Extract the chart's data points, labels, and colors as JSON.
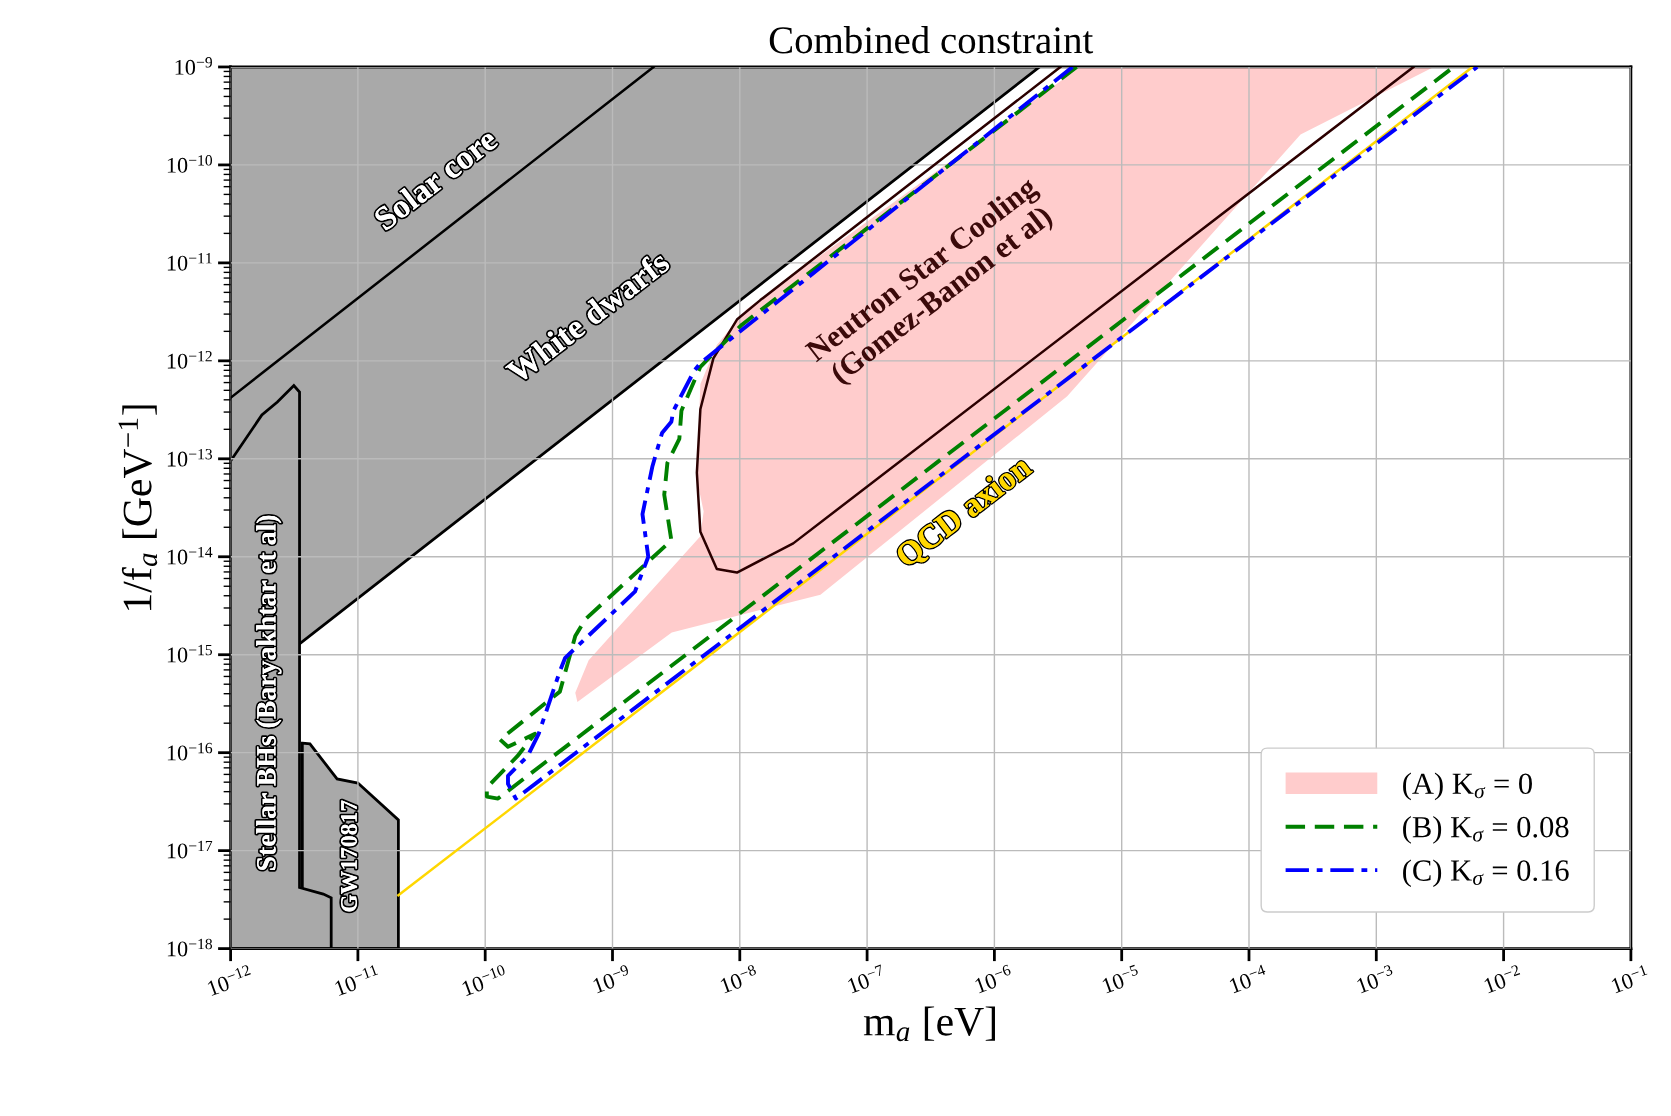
{
  "chart_data": {
    "type": "line",
    "title": "Combined constraint",
    "xlabel": "m$_{a}$ [eV]",
    "ylabel": "1/f$_{a}$ [GeV$^{−1}$]",
    "log": "xy",
    "grid": true,
    "legend": "bottom right",
    "xlim": [
      1e-12,
      0.1
    ],
    "ylim": [
      1e-18,
      1e-09
    ],
    "xticks": [
      {
        "value": 1e-12,
        "label": "10$^{−12}$"
      },
      {
        "value": 1e-11,
        "label": "10$^{−11}$"
      },
      {
        "value": 1e-10,
        "label": "10$^{−10}$"
      },
      {
        "value": 1e-09,
        "label": "10$^{−9}$"
      },
      {
        "value": 1e-08,
        "label": "10$^{−8}$"
      },
      {
        "value": 1e-07,
        "label": "10$^{−7}$"
      },
      {
        "value": 1e-06,
        "label": "10$^{−6}$"
      },
      {
        "value": 1e-05,
        "label": "10$^{−5}$"
      },
      {
        "value": 0.0001,
        "label": "10$^{−4}$"
      },
      {
        "value": 0.001,
        "label": "10$^{−3}$"
      },
      {
        "value": 0.01,
        "label": "10$^{−2}$"
      },
      {
        "value": 0.1,
        "label": "10$^{−1}$"
      }
    ],
    "yticks": [
      {
        "value": 1e-18,
        "label": "10$^{−18}$"
      },
      {
        "value": 1e-17,
        "label": "10$^{−17}$"
      },
      {
        "value": 1e-16,
        "label": "10$^{−16}$"
      },
      {
        "value": 1e-15,
        "label": "10$^{−15}$"
      },
      {
        "value": 1e-14,
        "label": "10$^{−14}$"
      },
      {
        "value": 1e-13,
        "label": "10$^{−13}$"
      },
      {
        "value": 1e-12,
        "label": "10$^{−12}$"
      },
      {
        "value": 1e-11,
        "label": "10$^{−11}$"
      },
      {
        "value": 1e-10,
        "label": "10$^{−10}$"
      },
      {
        "value": 1e-09,
        "label": "10$^{−9}$"
      }
    ],
    "series": [
      {
        "type": "area",
        "color": "#a9a9a9",
        "line_style": "solid",
        "x": [
          1e-12,
          2.26e-06,
          3.5e-12,
          1e-12
        ],
        "values": [
          1e-09,
          1e-09,
          1.3e-15,
          1.3e-15
        ]
      },
      {
        "color": "#000000",
        "line_style": "solid",
        "x": [
          1e-12,
          2.1e-09
        ],
        "values": [
          4.2e-13,
          1e-09
        ]
      },
      {
        "type": "area",
        "color": "#a9a9a9",
        "line_style": "solid",
        "x": [
          3.66e-12,
          4.2e-12,
          6.86e-12,
          1e-11,
          2.08e-11,
          2.08e-11,
          3.66e-12
        ],
        "values": [
          1.25e-16,
          1.23e-16,
          5.4e-17,
          4.9e-17,
          2.06e-17,
          1e-18,
          1e-18
        ]
      },
      {
        "type": "area",
        "color": "#a9a9a9",
        "line_style": "solid",
        "x": [
          1e-12,
          1.76e-12,
          2.33e-12,
          3.14e-12,
          3.48e-12,
          3.48e-12,
          5.35e-12,
          6.17e-12,
          6.17e-12,
          1e-12
        ],
        "values": [
          9.5e-14,
          2.8e-13,
          3.8e-13,
          5.6e-13,
          4.8e-13,
          4.2e-18,
          3.6e-18,
          3.3e-18,
          1e-18,
          1e-18
        ]
      },
      {
        "type": "area",
        "name": "(A) K$_{σ}$ = 0",
        "color": "#ffcccc",
        "x": [
          4.7e-06,
          0.00283,
          0.000254,
          3.73e-06,
          4.3e-08,
          2.92e-09,
          5.3e-10,
          5.1e-10,
          6.5e-10,
          4.9e-09,
          5.2e-09,
          4.6e-09,
          4.9e-09,
          6.6e-09,
          1.13e-08
        ],
        "values": [
          1e-09,
          1e-09,
          2.05e-10,
          4.35e-13,
          4.1e-15,
          1.69e-15,
          3.3e-16,
          4.1e-16,
          8.8e-16,
          1.62e-14,
          2.9e-14,
          6.2e-14,
          5.8e-13,
          1.45e-12,
          3.36e-12
        ]
      },
      {
        "color": "#2b0000",
        "line_style": "solid",
        "x": [
          3.3e-06,
          1.45e-08,
          9.5e-09,
          6.2e-09,
          4.9e-09,
          4.6e-09,
          4.9e-09,
          6.6e-09,
          9.5e-09,
          2.63e-08,
          0.00196
        ],
        "values": [
          1e-09,
          4.17e-12,
          2.64e-12,
          1.06e-12,
          3.2e-13,
          7.2e-14,
          1.8e-14,
          7.5e-15,
          6.9e-15,
          1.37e-14,
          1e-09
        ]
      },
      {
        "color": "#ffd700",
        "line_style": "solid",
        "x": [
          2.08e-11,
          0.0057
        ],
        "values": [
          3.5e-18,
          1e-09
        ]
      },
      {
        "name": "(B) K$_{σ}$ = 0.08",
        "color": "#008000",
        "line_style": "dashed",
        "x": [
          4.43e-06,
          1.04e-08,
          4.9e-09,
          3.48e-09,
          3.35e-09,
          2.7e-09,
          2.55e-09,
          2.9e-09,
          6.1e-10,
          5.1e-10,
          3.86e-10,
          1.31e-10,
          1.51e-10,
          2.46e-10,
          1.79e-10,
          1.03e-10,
          1.03e-10,
          1.26e-10,
          0.00405
        ],
        "values": [
          1e-09,
          2.34e-12,
          8.7e-13,
          3.1e-13,
          1.6e-13,
          9.1e-14,
          4.3e-14,
          1.47e-14,
          2.29e-15,
          1.55e-15,
          4.2e-16,
          1.36e-16,
          1.15e-16,
          1.56e-16,
          9.2e-17,
          4.4e-17,
          3.56e-17,
          3.4e-17,
          1e-09
        ]
      },
      {
        "name": "(C) K$_{σ}$ = 0.16",
        "color": "#0000ff",
        "line_style": "dashdot",
        "x": [
          4.11e-06,
          4.9e-09,
          4.38e-09,
          3e-09,
          2.9e-09,
          2.45e-09,
          2.06e-09,
          1.72e-09,
          1.91e-09,
          1.5e-09,
          4.25e-10,
          3.86e-10,
          2.63e-10,
          2.15e-10,
          1.51e-10,
          1.51e-10,
          1.74e-10,
          0.0062
        ],
        "values": [
          1e-09,
          9.5e-13,
          7.9e-13,
          3.07e-13,
          2.39e-13,
          1.83e-13,
          8.4e-14,
          2.72e-14,
          1e-14,
          4.4e-15,
          9.3e-16,
          6.8e-16,
          1.56e-16,
          9.2e-17,
          5.8e-17,
          4.8e-17,
          3.4e-17,
          1e-09
        ]
      }
    ],
    "annotations": [
      "Solar core",
      "White dwarfs",
      "Neutron Star Cooling\n(Gomez-Banon et al)",
      "Stellar BHs (Baryakhtar et al)",
      "GW170817",
      "QCD axion"
    ]
  }
}
